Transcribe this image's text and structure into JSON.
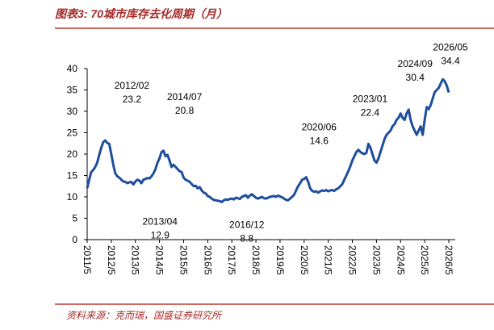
{
  "chart_data": {
    "type": "line",
    "title": "图表3: 70城市库存去化周期（月）",
    "source": "资料来源：克而瑞，国盛证券研究所",
    "categories": [
      "2011/5",
      null,
      null,
      null,
      null,
      null,
      null,
      null,
      null,
      null,
      null,
      null,
      "2012/5",
      null,
      null,
      null,
      null,
      null,
      null,
      null,
      null,
      null,
      null,
      null,
      "2013/5",
      null,
      null,
      null,
      null,
      null,
      null,
      null,
      null,
      null,
      null,
      null,
      "2014/5",
      null,
      null,
      null,
      null,
      null,
      null,
      null,
      null,
      null,
      null,
      null,
      "2015/5",
      null,
      null,
      null,
      null,
      null,
      null,
      null,
      null,
      null,
      null,
      null,
      "2016/5",
      null,
      null,
      null,
      null,
      null,
      null,
      null,
      null,
      null,
      null,
      null,
      "2017/5",
      null,
      null,
      null,
      null,
      null,
      null,
      null,
      null,
      null,
      null,
      null,
      "2018/5",
      null,
      null,
      null,
      null,
      null,
      null,
      null,
      null,
      null,
      null,
      null,
      "2019/5",
      null,
      null,
      null,
      null,
      null,
      null,
      null,
      null,
      null,
      null,
      null,
      "2020/5",
      null,
      null,
      null,
      null,
      null,
      null,
      null,
      null,
      null,
      null,
      null,
      "2021/5",
      null,
      null,
      null,
      null,
      null,
      null,
      null,
      null,
      null,
      null,
      null,
      "2022/5",
      null,
      null,
      null,
      null,
      null,
      null,
      null,
      null,
      null,
      null,
      null,
      "2023/5",
      null,
      null,
      null,
      null,
      null,
      null,
      null,
      null,
      null,
      null,
      null,
      "2024/5",
      null,
      null,
      null,
      null,
      null,
      null,
      null,
      null,
      null,
      null,
      null,
      "2025/5",
      null,
      null,
      null,
      null,
      null,
      null,
      null,
      null,
      null,
      null,
      null,
      "2026/5"
    ],
    "values": [
      12,
      14,
      15.8,
      16.3,
      17,
      18,
      19.8,
      21.5,
      22.8,
      23.2,
      22.6,
      22.4,
      20,
      17.5,
      15.5,
      14.8,
      14.5,
      14,
      13.6,
      13.5,
      13.2,
      13.4,
      13.5,
      12.9,
      13.6,
      14,
      13.8,
      13.2,
      14,
      14.2,
      14.4,
      14.3,
      14.8,
      15.5,
      16.5,
      18,
      19,
      20.5,
      20.8,
      19.5,
      19.8,
      18.5,
      17,
      17.5,
      17,
      16.5,
      16,
      15.8,
      14.5,
      14,
      13.8,
      13.5,
      13,
      12.5,
      12.6,
      12,
      12.3,
      11.5,
      11,
      10.8,
      10.2,
      10,
      9.6,
      9.3,
      9.2,
      9.1,
      9,
      8.8,
      9.2,
      9.4,
      9.3,
      9.5,
      9.6,
      9.4,
      9.8,
      9.7,
      9.5,
      10,
      10.2,
      10.4,
      9.8,
      10.3,
      10.6,
      10.2,
      9.8,
      9.6,
      9.8,
      10,
      9.7,
      9.6,
      9.8,
      10,
      10.1,
      10.2,
      10,
      10.3,
      10.1,
      9.9,
      9.6,
      9.3,
      9.2,
      9.6,
      10,
      10.5,
      11.5,
      12.5,
      13.2,
      14,
      14.2,
      14.6,
      13.5,
      12,
      11.4,
      11.2,
      11.3,
      11,
      11.3,
      11.5,
      11.4,
      11.6,
      11.3,
      11.5,
      11.6,
      11.4,
      11.8,
      12,
      12.5,
      13,
      14,
      15,
      16,
      17.2,
      18.5,
      19.5,
      20.5,
      21,
      20.5,
      20.2,
      20,
      20.3,
      22.4,
      21.5,
      20,
      18.5,
      18,
      19,
      20.5,
      22,
      23.5,
      24.5,
      25,
      25.5,
      26.5,
      27,
      28,
      28.5,
      29.5,
      28.5,
      28,
      29.5,
      30.4,
      28,
      26.5,
      25.5,
      24.5,
      25.5,
      26.5,
      24.5,
      28,
      31,
      30.5,
      31.5,
      33,
      34.5,
      35,
      35.5,
      36.5,
      37.5,
      37,
      36,
      34.4
    ],
    "color": "#1f4e9c",
    "ylim": [
      0,
      40
    ],
    "yticks": [
      0,
      5,
      10,
      15,
      20,
      25,
      30,
      35,
      40
    ],
    "annotations": [
      {
        "date": "2012/02",
        "value": 23.2
      },
      {
        "date": "2014/07",
        "value": 20.8
      },
      {
        "date": "2013/04",
        "value": 12.9
      },
      {
        "date": "2016/12",
        "value": 8.8
      },
      {
        "date": "2020/06",
        "value": 14.6
      },
      {
        "date": "2023/01",
        "value": 22.4
      },
      {
        "date": "2024/09",
        "value": 30.4
      },
      {
        "date": "2026/05",
        "value": 34.4
      }
    ]
  }
}
